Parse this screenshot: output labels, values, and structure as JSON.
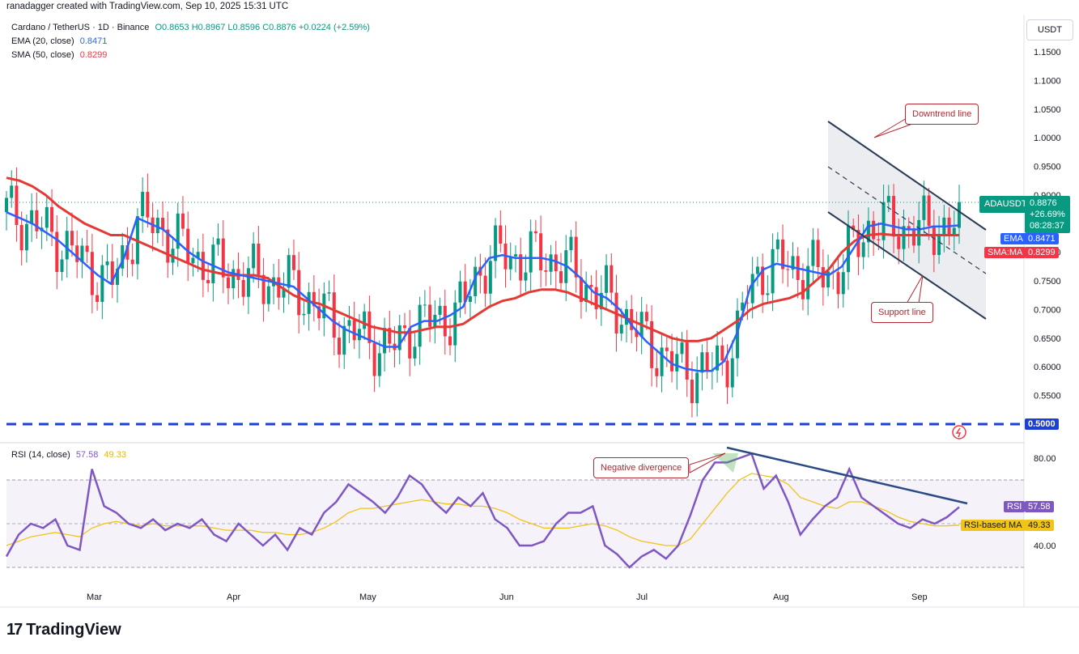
{
  "header": {
    "text": "ranadagger created with TradingView.com, Sep 10, 2025 15:31 UTC"
  },
  "symbol": {
    "name": "Cardano / TetherUS · 1D · Binance",
    "open": "O0.8653",
    "high": "H0.8967",
    "low": "L0.8596",
    "close": "C0.8876",
    "change": "+0.0224 (+2.59%)"
  },
  "indicators": {
    "ema": {
      "label": "EMA (20, close)",
      "value": "0.8471",
      "tag": "EMA",
      "color": "#2962ff"
    },
    "sma": {
      "label": "SMA (50, close)",
      "value": "0.8299",
      "tag": "SMA:MA",
      "color": "#f23645"
    },
    "rsi": {
      "label": "RSI (14, close)",
      "value": "57.58",
      "ma_value": "49.33",
      "tag": "RSI",
      "ma_tag": "RSI-based MA",
      "color": "#7e57c2",
      "ma_color": "#f0c419"
    }
  },
  "price_tag": {
    "ticker": "ADAUSDT",
    "price": "0.8876",
    "change": "+26.69%",
    "countdown": "08:28:37"
  },
  "currency_button": "USDT",
  "annotations": {
    "downtrend": "Downtrend line",
    "support": "Support line",
    "divergence": "Negative divergence"
  },
  "logo": {
    "text": "TradingView"
  },
  "colors": {
    "up": "#089981",
    "down": "#f23645",
    "ema": "#2962ff",
    "sma": "#e53935",
    "rsi": "#7e57c2",
    "rsi_ma": "#f0c419",
    "level": "#1e3fd6",
    "trendline": "#2b4a85"
  },
  "chart_data": [
    {
      "type": "candlestick",
      "title": "Cardano / TetherUS · 1D · Binance",
      "x_ticks": [
        "Mar",
        "Apr",
        "May",
        "Jun",
        "Jul",
        "Aug",
        "Sep"
      ],
      "y_ticks": [
        "1.1500",
        "1.1000",
        "1.0500",
        "1.0000",
        "0.9500",
        "0.9000",
        "0.8500",
        "0.8000",
        "0.7500",
        "0.7000",
        "0.6500",
        "0.6000",
        "0.5500",
        "0.5000"
      ],
      "ylim": [
        0.49,
        1.18
      ],
      "horizontal_level": 0.5,
      "last_close": 0.8876,
      "series": [
        {
          "name": "EMA (20, close)",
          "values": [
            0.87,
            0.86,
            0.85,
            0.835,
            0.82,
            0.8,
            0.78,
            0.76,
            0.745,
            0.79,
            0.86,
            0.85,
            0.84,
            0.82,
            0.8,
            0.785,
            0.775,
            0.765,
            0.76,
            0.755,
            0.75,
            0.745,
            0.74,
            0.72,
            0.7,
            0.68,
            0.665,
            0.655,
            0.645,
            0.635,
            0.635,
            0.67,
            0.68,
            0.68,
            0.69,
            0.705,
            0.76,
            0.79,
            0.795,
            0.79,
            0.79,
            0.79,
            0.785,
            0.775,
            0.755,
            0.73,
            0.72,
            0.7,
            0.67,
            0.645,
            0.625,
            0.605,
            0.597,
            0.593,
            0.593,
            0.61,
            0.66,
            0.74,
            0.77,
            0.78,
            0.775,
            0.77,
            0.765,
            0.76,
            0.775,
            0.81,
            0.845,
            0.85,
            0.845,
            0.84,
            0.84,
            0.845,
            0.845,
            0.847
          ]
        },
        {
          "name": "SMA (50, close)",
          "values": [
            0.93,
            0.925,
            0.915,
            0.9,
            0.88,
            0.865,
            0.85,
            0.84,
            0.83,
            0.83,
            0.82,
            0.81,
            0.8,
            0.79,
            0.78,
            0.77,
            0.765,
            0.76,
            0.76,
            0.76,
            0.755,
            0.74,
            0.725,
            0.715,
            0.71,
            0.7,
            0.69,
            0.68,
            0.67,
            0.665,
            0.66,
            0.66,
            0.665,
            0.67,
            0.67,
            0.675,
            0.69,
            0.705,
            0.715,
            0.72,
            0.73,
            0.735,
            0.735,
            0.73,
            0.72,
            0.71,
            0.7,
            0.69,
            0.68,
            0.67,
            0.66,
            0.65,
            0.645,
            0.645,
            0.65,
            0.665,
            0.68,
            0.7,
            0.71,
            0.715,
            0.72,
            0.73,
            0.75,
            0.77,
            0.8,
            0.82,
            0.83,
            0.832,
            0.83,
            0.83,
            0.83,
            0.83,
            0.83,
            0.8299
          ]
        }
      ]
    },
    {
      "type": "line",
      "title": "RSI (14, close)",
      "y_ticks": [
        "80.00",
        "40.00"
      ],
      "ylim": [
        22,
        88
      ],
      "band": [
        30,
        70
      ],
      "series": [
        {
          "name": "RSI",
          "values": [
            35,
            45,
            50,
            48,
            52,
            40,
            38,
            75,
            58,
            55,
            50,
            48,
            52,
            47,
            50,
            48,
            52,
            45,
            42,
            50,
            45,
            40,
            45,
            38,
            48,
            45,
            55,
            60,
            68,
            64,
            60,
            55,
            62,
            72,
            68,
            60,
            55,
            62,
            58,
            64,
            52,
            48,
            40,
            40,
            42,
            50,
            55,
            55,
            58,
            40,
            36,
            30,
            35,
            38,
            34,
            40,
            54,
            70,
            78,
            78,
            80,
            82,
            66,
            72,
            60,
            45,
            52,
            58,
            62,
            75,
            62,
            58,
            54,
            50,
            48,
            52,
            50,
            53,
            57.58
          ]
        },
        {
          "name": "RSI-based MA",
          "values": [
            40,
            42,
            44,
            45,
            46,
            45,
            44,
            48,
            50,
            51,
            50,
            49,
            50,
            49,
            49,
            49,
            49,
            48,
            47,
            47,
            47,
            46,
            46,
            45,
            45,
            46,
            48,
            51,
            55,
            57,
            57,
            58,
            59,
            60,
            61,
            60,
            59,
            59,
            58,
            58,
            57,
            55,
            52,
            50,
            48,
            48,
            48,
            49,
            50,
            49,
            47,
            44,
            42,
            41,
            40,
            40,
            43,
            50,
            57,
            64,
            70,
            73,
            72,
            71,
            68,
            62,
            60,
            58,
            57,
            60,
            60,
            58,
            56,
            53,
            51,
            50,
            49,
            49,
            49.33
          ]
        }
      ]
    }
  ]
}
